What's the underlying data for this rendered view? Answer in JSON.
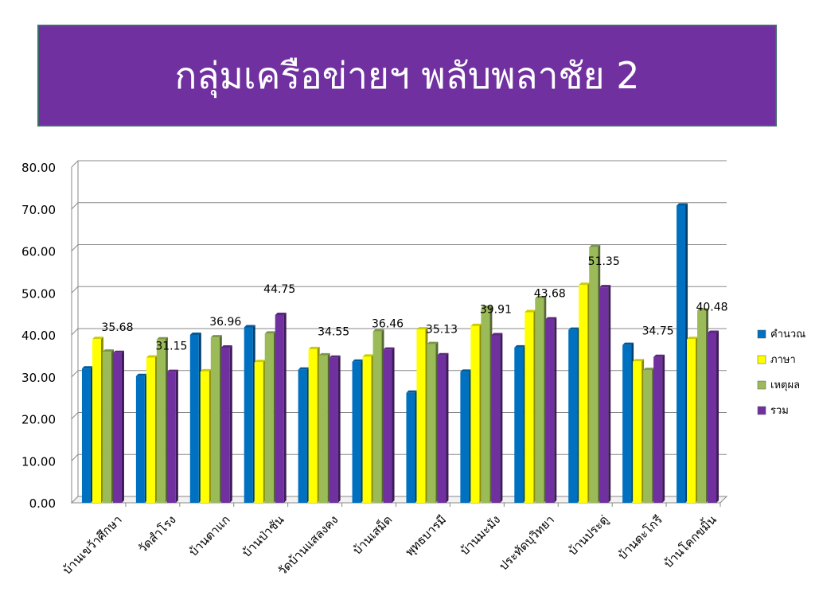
{
  "slide": {
    "title": "กลุ่มเครือข่ายฯ พลับพลาชัย 2"
  },
  "colors": {
    "title_bg": "#7030a0"
  },
  "chart_data": {
    "type": "bar",
    "title": "",
    "xlabel": "",
    "ylabel": "",
    "ylim": [
      0,
      80
    ],
    "yticks": [
      "0.00",
      "10.00",
      "20.00",
      "30.00",
      "40.00",
      "50.00",
      "60.00",
      "70.00",
      "80.00"
    ],
    "grid": true,
    "legend_position": "right",
    "categories": [
      "บ้านเขว้าศึกษา",
      "วัดสำโรง",
      "บ้านตาแก",
      "บ้านป่าชัน",
      "วัดบ้านแสลงคง",
      "บ้านเสม็ด",
      "พุทธบารมี",
      "บ้านมะมัง",
      "ประทัดบุวิทยา",
      "บ้านประดู่",
      "บ้านตะโกรี",
      "บ้านโคกขมิ้น"
    ],
    "series": [
      {
        "name": "คำนวณ",
        "color": "#0070c0",
        "values": [
          32,
          30.2,
          40,
          41.8,
          31.7,
          33.6,
          26.2,
          31.2,
          37,
          41.2,
          37.6,
          70.8
        ]
      },
      {
        "name": "ภาษา",
        "color": "#ffff00",
        "values": [
          39,
          34.6,
          31.3,
          33.5,
          36.6,
          34.8,
          41.3,
          42.1,
          45.4,
          51.9,
          33.7,
          39
        ]
      },
      {
        "name": "เหตุผล",
        "color": "#9bbb59",
        "values": [
          36,
          38.9,
          39.4,
          40.3,
          35.1,
          40.8,
          37.8,
          46.4,
          48.7,
          60.9,
          31.6,
          45.8
        ]
      },
      {
        "name": "รวม",
        "color": "#7030a0",
        "values": [
          35.68,
          31.15,
          36.96,
          44.75,
          34.55,
          36.46,
          35.13,
          39.91,
          43.68,
          51.35,
          34.75,
          40.48
        ]
      }
    ],
    "data_labels": [
      "35.68",
      "31.15",
      "36.96",
      "44.75",
      "34.55",
      "36.46",
      "35.13",
      "39.91",
      "43.68",
      "51.35",
      "34.75",
      "40.48"
    ]
  }
}
